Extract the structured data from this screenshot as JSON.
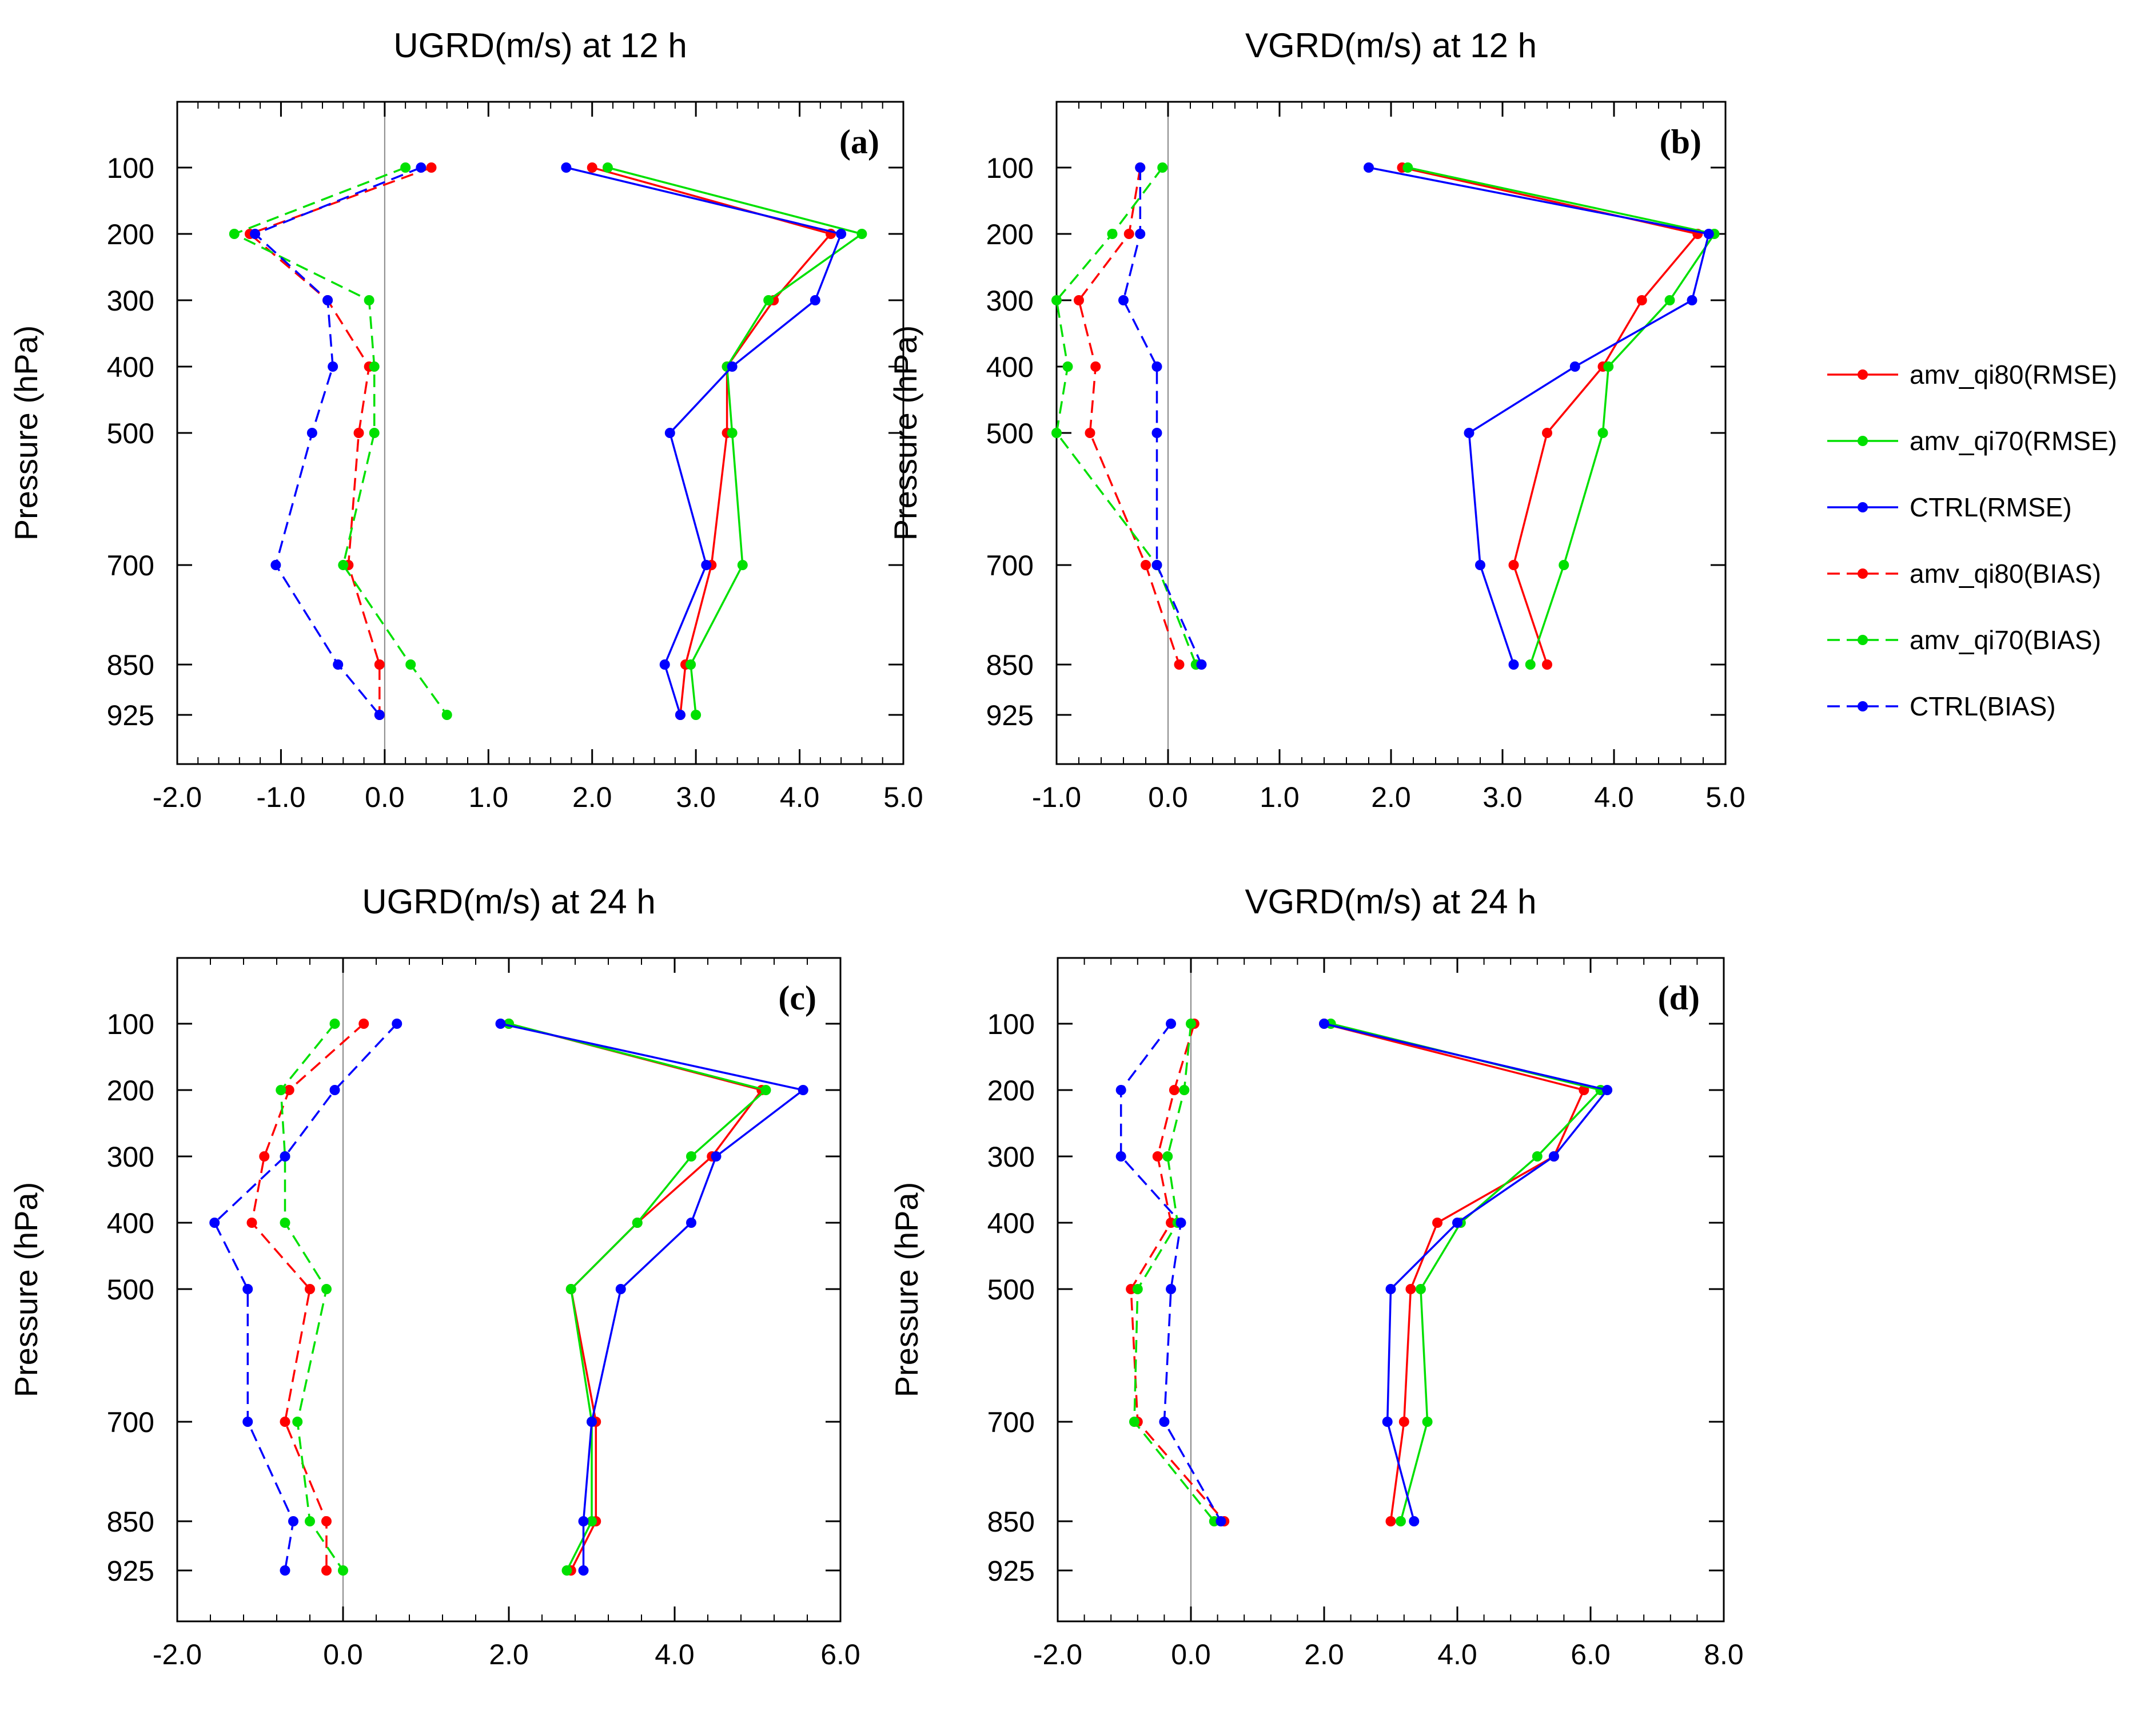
{
  "colors": {
    "red": "#ff0000",
    "green": "#00e000",
    "blue": "#0000ff"
  },
  "legend": [
    {
      "label": "amv_qi80(RMSE)",
      "color": "#ff0000",
      "dashed": false
    },
    {
      "label": "amv_qi70(RMSE)",
      "color": "#00e000",
      "dashed": false
    },
    {
      "label": "CTRL(RMSE)",
      "color": "#0000ff",
      "dashed": false
    },
    {
      "label": "amv_qi80(BIAS)",
      "color": "#ff0000",
      "dashed": true
    },
    {
      "label": "amv_qi70(BIAS)",
      "color": "#00e000",
      "dashed": true
    },
    {
      "label": "CTRL(BIAS)",
      "color": "#0000ff",
      "dashed": true
    }
  ],
  "chart_data": [
    {
      "type": "line",
      "panel": "(a)",
      "title": "UGRD(m/s) at 12 h",
      "ylabel": "Pressure (hPa)",
      "xlim": [
        -2.0,
        5.0
      ],
      "xticks": [
        -2,
        -1,
        0,
        1,
        2,
        3,
        4,
        5
      ],
      "xtick_labels": [
        "-2.0",
        "-1.0",
        "0.0",
        "1.0",
        "2.0",
        "3.0",
        "4.0",
        "5.0"
      ],
      "ylim": [
        0,
        1000
      ],
      "y_ticks": [
        100,
        200,
        300,
        400,
        500,
        700,
        850,
        925
      ],
      "y_tick_labels": [
        "100",
        "200",
        "300",
        "400",
        "500",
        "700",
        "850",
        "925"
      ],
      "series": [
        {
          "name": "amv_qi80(RMSE)",
          "levels": [
            100,
            200,
            300,
            400,
            500,
            700,
            850,
            925
          ],
          "values": [
            2.0,
            4.3,
            3.75,
            3.3,
            3.3,
            3.15,
            2.9,
            2.85
          ]
        },
        {
          "name": "amv_qi70(RMSE)",
          "levels": [
            100,
            200,
            300,
            400,
            500,
            700,
            850,
            925
          ],
          "values": [
            2.15,
            4.6,
            3.7,
            3.3,
            3.35,
            3.45,
            2.95,
            3.0
          ]
        },
        {
          "name": "CTRL(RMSE)",
          "levels": [
            100,
            200,
            300,
            400,
            500,
            700,
            850,
            925
          ],
          "values": [
            1.75,
            4.4,
            4.15,
            3.35,
            2.75,
            3.1,
            2.7,
            2.85
          ]
        },
        {
          "name": "amv_qi80(BIAS)",
          "levels": [
            100,
            200,
            300,
            400,
            500,
            700,
            850,
            925
          ],
          "values": [
            0.45,
            -1.3,
            -0.55,
            -0.15,
            -0.25,
            -0.35,
            -0.05,
            -0.05
          ]
        },
        {
          "name": "amv_qi70(BIAS)",
          "levels": [
            100,
            200,
            300,
            400,
            500,
            700,
            850,
            925
          ],
          "values": [
            0.2,
            -1.45,
            -0.15,
            -0.1,
            -0.1,
            -0.4,
            0.25,
            0.6
          ]
        },
        {
          "name": "CTRL(BIAS)",
          "levels": [
            100,
            200,
            300,
            400,
            500,
            700,
            850,
            925
          ],
          "values": [
            0.35,
            -1.25,
            -0.55,
            -0.5,
            -0.7,
            -1.05,
            -0.45,
            -0.05
          ]
        }
      ]
    },
    {
      "type": "line",
      "panel": "(b)",
      "title": "VGRD(m/s) at 12 h",
      "ylabel": "Pressure (hPa)",
      "xlim": [
        -1.0,
        5.0
      ],
      "xticks": [
        -1,
        0,
        1,
        2,
        3,
        4,
        5
      ],
      "xtick_labels": [
        "-1.0",
        "0.0",
        "1.0",
        "2.0",
        "3.0",
        "4.0",
        "5.0"
      ],
      "ylim": [
        0,
        1000
      ],
      "y_ticks": [
        100,
        200,
        300,
        400,
        500,
        700,
        850,
        925
      ],
      "y_tick_labels": [
        "100",
        "200",
        "300",
        "400",
        "500",
        "700",
        "850",
        "925"
      ],
      "series": [
        {
          "name": "amv_qi80(RMSE)",
          "levels": [
            100,
            200,
            300,
            400,
            500,
            700,
            850
          ],
          "values": [
            2.1,
            4.75,
            4.25,
            3.9,
            3.4,
            3.1,
            3.4
          ]
        },
        {
          "name": "amv_qi70(RMSE)",
          "levels": [
            100,
            200,
            300,
            400,
            500,
            700,
            850
          ],
          "values": [
            2.15,
            4.9,
            4.5,
            3.95,
            3.9,
            3.55,
            3.25
          ]
        },
        {
          "name": "CTRL(RMSE)",
          "levels": [
            100,
            200,
            300,
            400,
            500,
            700,
            850
          ],
          "values": [
            1.8,
            4.85,
            4.7,
            3.65,
            2.7,
            2.8,
            3.1
          ]
        },
        {
          "name": "amv_qi80(BIAS)",
          "levels": [
            100,
            200,
            300,
            400,
            500,
            700,
            850
          ],
          "values": [
            -0.25,
            -0.35,
            -0.8,
            -0.65,
            -0.7,
            -0.2,
            0.1
          ]
        },
        {
          "name": "amv_qi70(BIAS)",
          "levels": [
            100,
            200,
            300,
            400,
            500,
            700,
            850
          ],
          "values": [
            -0.05,
            -0.5,
            -1.0,
            -0.9,
            -1.0,
            -0.1,
            0.25
          ]
        },
        {
          "name": "CTRL(BIAS)",
          "levels": [
            100,
            200,
            300,
            400,
            500,
            700,
            850
          ],
          "values": [
            -0.25,
            -0.25,
            -0.4,
            -0.1,
            -0.1,
            -0.1,
            0.3
          ]
        }
      ]
    },
    {
      "type": "line",
      "panel": "(c)",
      "title": "UGRD(m/s) at 24 h",
      "ylabel": "Pressure (hPa)",
      "xlim": [
        -2.0,
        6.0
      ],
      "xticks": [
        -2,
        0,
        2,
        4,
        6
      ],
      "xtick_labels": [
        "-2.0",
        "0.0",
        "2.0",
        "4.0",
        "6.0"
      ],
      "ylim": [
        0,
        1000
      ],
      "y_ticks": [
        100,
        200,
        300,
        400,
        500,
        700,
        850,
        925
      ],
      "y_tick_labels": [
        "100",
        "200",
        "300",
        "400",
        "500",
        "700",
        "850",
        "925"
      ],
      "series": [
        {
          "name": "amv_qi80(RMSE)",
          "levels": [
            100,
            200,
            300,
            400,
            500,
            700,
            850,
            925
          ],
          "values": [
            2.0,
            5.05,
            4.45,
            3.55,
            2.75,
            3.05,
            3.05,
            2.75
          ]
        },
        {
          "name": "amv_qi70(RMSE)",
          "levels": [
            100,
            200,
            300,
            400,
            500,
            700,
            850,
            925
          ],
          "values": [
            2.0,
            5.1,
            4.2,
            3.55,
            2.75,
            3.0,
            3.0,
            2.7
          ]
        },
        {
          "name": "CTRL(RMSE)",
          "levels": [
            100,
            200,
            300,
            400,
            500,
            700,
            850,
            925
          ],
          "values": [
            1.9,
            5.55,
            4.5,
            4.2,
            3.35,
            3.0,
            2.9,
            2.9
          ]
        },
        {
          "name": "amv_qi80(BIAS)",
          "levels": [
            100,
            200,
            300,
            400,
            500,
            700,
            850,
            925
          ],
          "values": [
            0.25,
            -0.65,
            -0.95,
            -1.1,
            -0.4,
            -0.7,
            -0.2,
            -0.2
          ]
        },
        {
          "name": "amv_qi70(BIAS)",
          "levels": [
            100,
            200,
            300,
            400,
            500,
            700,
            850,
            925
          ],
          "values": [
            -0.1,
            -0.75,
            -0.7,
            -0.7,
            -0.2,
            -0.55,
            -0.4,
            0.0
          ]
        },
        {
          "name": "CTRL(BIAS)",
          "levels": [
            100,
            200,
            300,
            400,
            500,
            700,
            850,
            925
          ],
          "values": [
            0.65,
            -0.1,
            -0.7,
            -1.55,
            -1.15,
            -1.15,
            -0.6,
            -0.7
          ]
        }
      ]
    },
    {
      "type": "line",
      "panel": "(d)",
      "title": "VGRD(m/s) at 24 h",
      "ylabel": "Pressure (hPa)",
      "xlim": [
        -2.0,
        8.0
      ],
      "xticks": [
        -2,
        0,
        2,
        4,
        6,
        8
      ],
      "xtick_labels": [
        "-2.0",
        "0.0",
        "2.0",
        "4.0",
        "6.0",
        "8.0"
      ],
      "ylim": [
        0,
        1000
      ],
      "y_ticks": [
        100,
        200,
        300,
        400,
        500,
        700,
        850,
        925
      ],
      "y_tick_labels": [
        "100",
        "200",
        "300",
        "400",
        "500",
        "700",
        "850",
        "925"
      ],
      "series": [
        {
          "name": "amv_qi80(RMSE)",
          "levels": [
            100,
            200,
            300,
            400,
            500,
            700,
            850
          ],
          "values": [
            2.0,
            5.9,
            5.45,
            3.7,
            3.3,
            3.2,
            3.0
          ]
        },
        {
          "name": "amv_qi70(RMSE)",
          "levels": [
            100,
            200,
            300,
            400,
            500,
            700,
            850
          ],
          "values": [
            2.1,
            6.15,
            5.2,
            4.05,
            3.45,
            3.55,
            3.15
          ]
        },
        {
          "name": "CTRL(RMSE)",
          "levels": [
            100,
            200,
            300,
            400,
            500,
            700,
            850
          ],
          "values": [
            2.0,
            6.25,
            5.45,
            4.0,
            3.0,
            2.95,
            3.35
          ]
        },
        {
          "name": "amv_qi80(BIAS)",
          "levels": [
            100,
            200,
            300,
            400,
            500,
            700,
            850
          ],
          "values": [
            0.05,
            -0.25,
            -0.5,
            -0.3,
            -0.9,
            -0.8,
            0.5
          ]
        },
        {
          "name": "amv_qi70(BIAS)",
          "levels": [
            100,
            200,
            300,
            400,
            500,
            700,
            850
          ],
          "values": [
            0.0,
            -0.1,
            -0.35,
            -0.2,
            -0.8,
            -0.85,
            0.35
          ]
        },
        {
          "name": "CTRL(BIAS)",
          "levels": [
            100,
            200,
            300,
            400,
            500,
            700,
            850
          ],
          "values": [
            -0.3,
            -1.05,
            -1.05,
            -0.15,
            -0.3,
            -0.4,
            0.45
          ]
        }
      ]
    }
  ]
}
